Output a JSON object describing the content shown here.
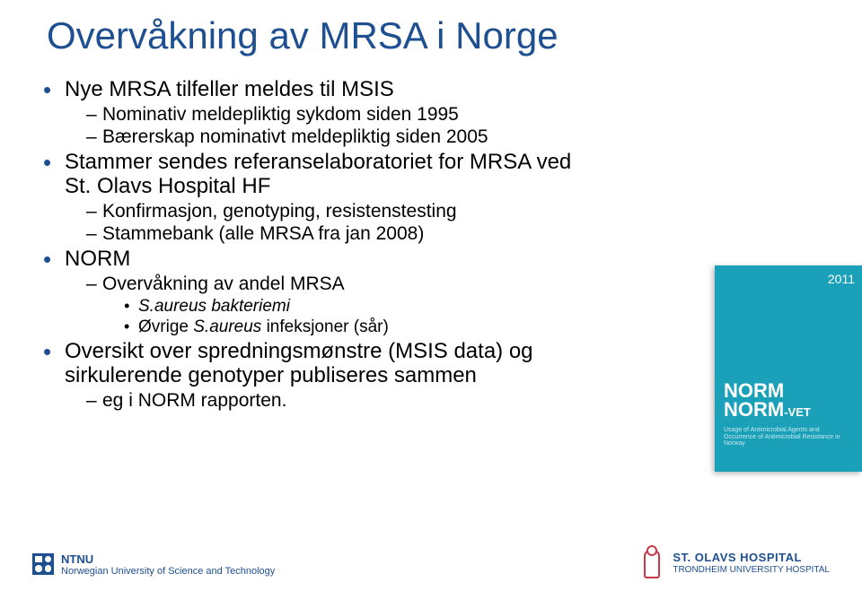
{
  "title": "Overvåkning av MRSA i Norge",
  "title_color": "#1d4f91",
  "bullet_color": "#1d4f91",
  "body_color": "#000000",
  "background_color": "#ffffff",
  "bullets": {
    "b1": "Nye MRSA tilfeller meldes til MSIS",
    "b1_1": "Nominativ meldepliktig sykdom siden 1995",
    "b1_2": "Bærerskap nominativt meldepliktig siden 2005",
    "b2": "Stammer sendes referanselaboratoriet for MRSA ved St. Olavs Hospital HF",
    "b2_1": "Konfirmasjon, genotyping, resistenstesting",
    "b2_2": "Stammebank (alle MRSA fra jan 2008)",
    "b3": "NORM",
    "b3_1": "Overvåkning av andel MRSA",
    "b3_1_1": "S.aureus bakteriemi",
    "b3_1_2_prefix": "Øvrige ",
    "b3_1_2_italic": "S.aureus",
    "b3_1_2_suffix": " infeksjoner (sår)",
    "b4": "Oversikt over spredningsmønstre (MSIS data) og sirkulerende genotyper publiseres sammen",
    "b4_1": "eg i NORM rapporten."
  },
  "norm_cover": {
    "bg_color": "#1aa0b8",
    "year": "2011",
    "line1": "NORM",
    "line2": "NORM",
    "vet": "-VET",
    "subtitle": "Usage of Antimicrobial Agents and Occurrence of Antimicrobial Resistance in Norway"
  },
  "footer": {
    "ntnu_bold": "NTNU",
    "ntnu_sub": "Norwegian University of Science and Technology",
    "ntnu_color": "#1d4f91",
    "stolav_bold": "ST. OLAVS HOSPITAL",
    "stolav_sub": "TRONDHEIM UNIVERSITY HOSPITAL",
    "stolav_text_color": "#1d4f91",
    "stolav_mark_color": "#c8394a"
  }
}
